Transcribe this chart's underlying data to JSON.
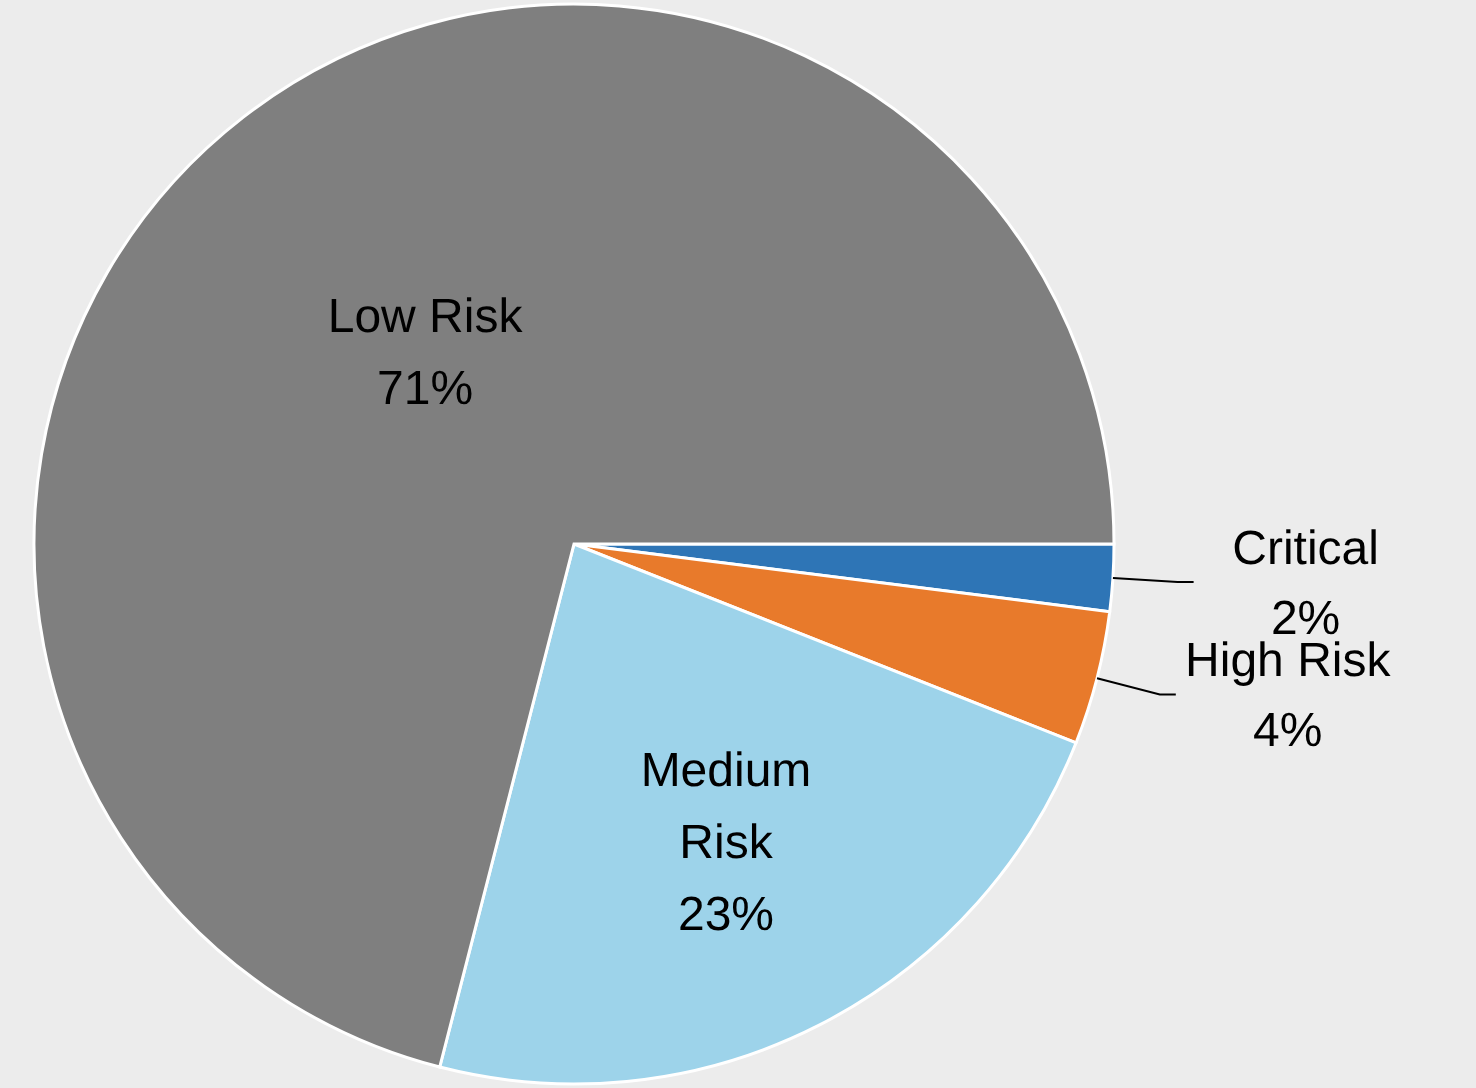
{
  "chart_data": {
    "type": "pie",
    "categories": [
      "Critical",
      "High Risk",
      "Medium Risk",
      "Low Risk"
    ],
    "values": [
      2,
      4,
      23,
      71
    ],
    "value_labels": [
      "2%",
      "4%",
      "23%",
      "71%"
    ],
    "colors": [
      "#2e75b6",
      "#e87a2b",
      "#9dd3ea",
      "#7f7f7f"
    ]
  }
}
